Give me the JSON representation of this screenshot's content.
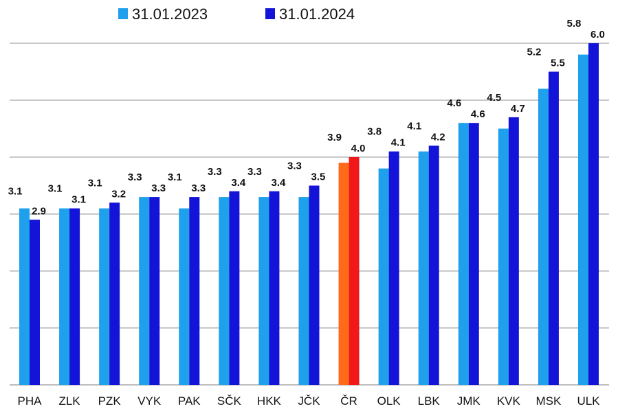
{
  "chart_data": {
    "type": "bar",
    "categories": [
      "PHA",
      "ZLK",
      "PZK",
      "VYK",
      "PAK",
      "SČK",
      "HKK",
      "JČK",
      "ČR",
      "OLK",
      "LBK",
      "JMK",
      "KVK",
      "MSK",
      "ULK"
    ],
    "series": [
      {
        "name": "31.01.2023",
        "color": "#1ea0ec",
        "values": [
          3.1,
          3.1,
          3.1,
          3.3,
          3.1,
          3.3,
          3.3,
          3.3,
          3.9,
          3.8,
          4.1,
          4.6,
          4.5,
          5.2,
          5.8
        ]
      },
      {
        "name": "31.01.2024",
        "color": "#1414d8",
        "values": [
          2.9,
          3.1,
          3.2,
          3.3,
          3.3,
          3.4,
          3.4,
          3.5,
          4.0,
          4.1,
          4.2,
          4.6,
          4.7,
          5.5,
          6.0
        ]
      }
    ],
    "highlight": {
      "category": "ČR",
      "colors": [
        "#ff6a1a",
        "#f01818"
      ]
    },
    "ylim": [
      0,
      6.0
    ],
    "gridlines": true,
    "legend_position": "top-left",
    "title": "",
    "xlabel": "",
    "ylabel": ""
  }
}
